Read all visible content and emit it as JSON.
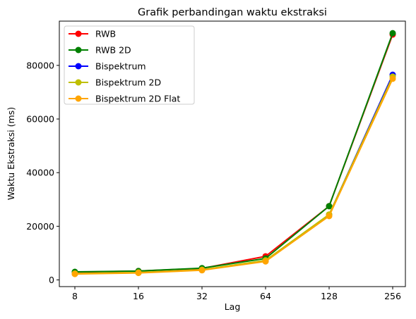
{
  "chart_data": {
    "type": "line",
    "title": "Grafik perbandingan waktu ekstraksi",
    "xlabel": "Lag",
    "ylabel": "Waktu Ekstraksi (ms)",
    "x": [
      "8",
      "16",
      "32",
      "64",
      "128",
      "256"
    ],
    "ylim": [
      -2500,
      96500
    ],
    "yticks": [
      0,
      20000,
      40000,
      60000,
      80000
    ],
    "ytick_labels": [
      "0",
      "20000",
      "40000",
      "60000",
      "80000"
    ],
    "grid": false,
    "legend_position": "top-left",
    "series": [
      {
        "name": "RWB",
        "color": "#ff0000",
        "values": [
          2900,
          3300,
          4300,
          8800,
          27500,
          91500
        ]
      },
      {
        "name": "RWB 2D",
        "color": "#008000",
        "values": [
          3000,
          3300,
          4400,
          8000,
          27500,
          92000
        ]
      },
      {
        "name": "Bispektrum",
        "color": "#0000ff",
        "values": [
          2300,
          2700,
          3700,
          7100,
          24300,
          76500
        ]
      },
      {
        "name": "Bispektrum 2D",
        "color": "#bfbf00",
        "values": [
          2400,
          2800,
          3800,
          7300,
          24400,
          75800
        ]
      },
      {
        "name": "Bispektrum 2D Flat",
        "color": "#ffa500",
        "values": [
          2200,
          2600,
          3600,
          6900,
          23800,
          75000
        ]
      }
    ]
  }
}
